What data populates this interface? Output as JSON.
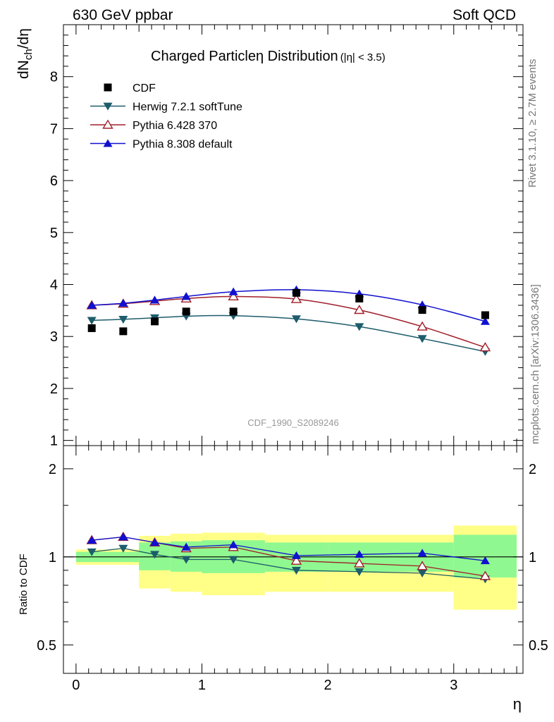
{
  "header": {
    "left": "630 GeV ppbar",
    "right": "Soft QCD"
  },
  "side_text": {
    "rivet": "Rivet 3.1.10, ≥ 2.7M events",
    "mcplots": "mcplots.cern.ch [arXiv:1306.3436]"
  },
  "watermark": "CDF_1990_S2089246",
  "colors": {
    "data": "#000000",
    "herwig": "#1d5c6b",
    "pythia6": "#a01e2a",
    "pythia8": "#1010d0",
    "band_outer": "#ffff88",
    "band_inner": "#90f890"
  },
  "chart_data": {
    "type": "line",
    "title_main": "Charged Particleη Distribution",
    "title_sub": "(|η| < 3.5)",
    "xlabel": "η",
    "ylabel_top": "dN",
    "ylabel_top_sub": "ch",
    "ylabel_top_tail": "/dη",
    "ylabel_bottom": "Ratio to CDF",
    "xlim": [
      -0.1,
      3.55
    ],
    "ylim_top": [
      0.9,
      9.0
    ],
    "ylim_bottom": [
      0.4,
      2.4
    ],
    "ratio_scale": "log",
    "x_ticks": [
      "0",
      "1",
      "2",
      "3"
    ],
    "y_ticks_top": [
      "1",
      "2",
      "3",
      "4",
      "5",
      "6",
      "7",
      "8"
    ],
    "y_ticks_bottom": [
      "0.5",
      "1",
      "2"
    ],
    "x": [
      0.125,
      0.375,
      0.625,
      0.875,
      1.25,
      1.75,
      2.25,
      2.75,
      3.25
    ],
    "data": {
      "name": "CDF",
      "values": [
        3.16,
        3.1,
        3.29,
        3.48,
        3.48,
        3.84,
        3.73,
        3.51,
        3.41
      ]
    },
    "bands": [
      {
        "x_lo": 0.0,
        "x_hi": 0.5,
        "outer": [
          0.94,
          1.06
        ],
        "inner": [
          0.96,
          1.04
        ]
      },
      {
        "x_lo": 0.5,
        "x_hi": 0.75,
        "outer": [
          0.78,
          1.18
        ],
        "inner": [
          0.9,
          1.12
        ]
      },
      {
        "x_lo": 0.75,
        "x_hi": 1.0,
        "outer": [
          0.76,
          1.2
        ],
        "inner": [
          0.89,
          1.13
        ]
      },
      {
        "x_lo": 1.0,
        "x_hi": 1.5,
        "outer": [
          0.74,
          1.21
        ],
        "inner": [
          0.88,
          1.14
        ]
      },
      {
        "x_lo": 1.5,
        "x_hi": 2.0,
        "outer": [
          0.76,
          1.19
        ],
        "inner": [
          0.89,
          1.12
        ]
      },
      {
        "x_lo": 2.0,
        "x_hi": 3.0,
        "outer": [
          0.76,
          1.19
        ],
        "inner": [
          0.89,
          1.12
        ]
      },
      {
        "x_lo": 3.0,
        "x_hi": 3.5,
        "outer": [
          0.66,
          1.28
        ],
        "inner": [
          0.85,
          1.19
        ]
      }
    ],
    "series": [
      {
        "name": "Herwig 7.2.1 softTune",
        "key": "herwig",
        "marker": "triangle-down-filled",
        "values": [
          3.31,
          3.33,
          3.36,
          3.39,
          3.4,
          3.34,
          3.19,
          2.96,
          2.71
        ],
        "ratio": [
          1.04,
          1.07,
          1.02,
          0.98,
          0.98,
          0.9,
          0.89,
          0.88,
          0.84
        ]
      },
      {
        "name": "Pythia 6.428 370",
        "key": "pythia6",
        "marker": "triangle-up-open",
        "values": [
          3.6,
          3.63,
          3.68,
          3.73,
          3.77,
          3.72,
          3.51,
          3.19,
          2.79
        ],
        "ratio": [
          1.14,
          1.17,
          1.12,
          1.07,
          1.08,
          0.97,
          0.95,
          0.93,
          0.86
        ]
      },
      {
        "name": "Pythia 8.308 default",
        "key": "pythia8",
        "marker": "triangle-up-filled",
        "values": [
          3.6,
          3.64,
          3.7,
          3.77,
          3.86,
          3.9,
          3.82,
          3.61,
          3.29
        ],
        "ratio": [
          1.14,
          1.17,
          1.12,
          1.08,
          1.1,
          1.01,
          1.02,
          1.03,
          0.97
        ]
      }
    ]
  }
}
